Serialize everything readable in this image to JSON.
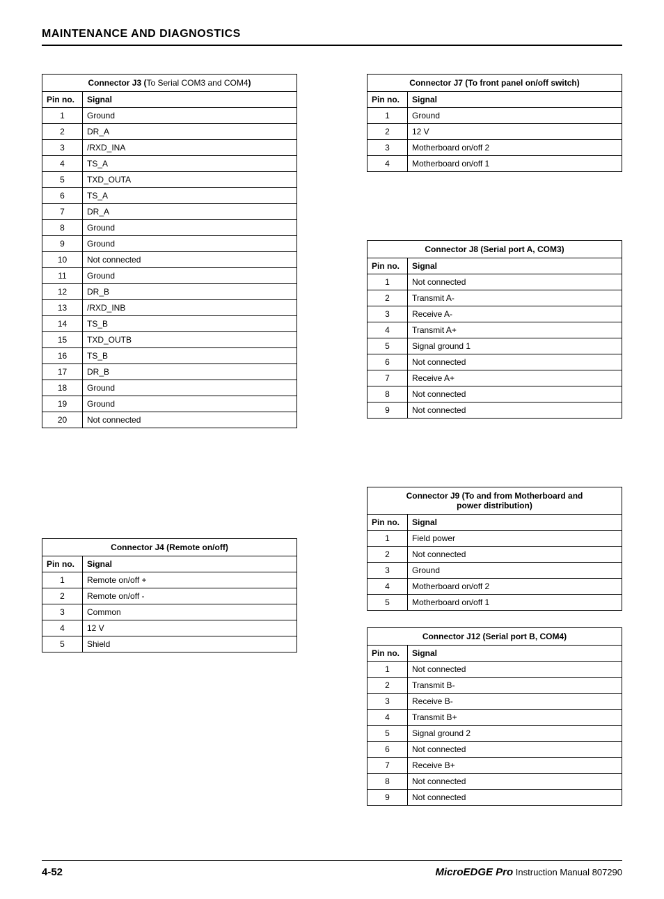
{
  "page": {
    "section_title": "MAINTENANCE AND DIAGNOSTICS",
    "footer_page": "4-52",
    "footer_brand": "MicroEDGE Pro",
    "footer_text": " Instruction Manual   807290"
  },
  "labels": {
    "pin_no": "Pin no.",
    "signal": "Signal"
  },
  "tables": {
    "j3": {
      "title_prefix": "Connector J3 (",
      "title_mid": "To Serial COM3 and COM4",
      "title_suffix": ")",
      "rows": [
        {
          "pin": "1",
          "sig": "Ground"
        },
        {
          "pin": "2",
          "sig": "DR_A"
        },
        {
          "pin": "3",
          "sig": "/RXD_INA"
        },
        {
          "pin": "4",
          "sig": "TS_A"
        },
        {
          "pin": "5",
          "sig": "TXD_OUTA"
        },
        {
          "pin": "6",
          "sig": "TS_A"
        },
        {
          "pin": "7",
          "sig": "DR_A"
        },
        {
          "pin": "8",
          "sig": "Ground"
        },
        {
          "pin": "9",
          "sig": "Ground"
        },
        {
          "pin": "10",
          "sig": "Not connected"
        },
        {
          "pin": "11",
          "sig": "Ground"
        },
        {
          "pin": "12",
          "sig": "DR_B"
        },
        {
          "pin": "13",
          "sig": "/RXD_INB"
        },
        {
          "pin": "14",
          "sig": "TS_B"
        },
        {
          "pin": "15",
          "sig": "TXD_OUTB"
        },
        {
          "pin": "16",
          "sig": "TS_B"
        },
        {
          "pin": "17",
          "sig": "DR_B"
        },
        {
          "pin": "18",
          "sig": "Ground"
        },
        {
          "pin": "19",
          "sig": "Ground"
        },
        {
          "pin": "20",
          "sig": "Not connected"
        }
      ]
    },
    "j4": {
      "title": "Connector J4 (Remote on/off)",
      "rows": [
        {
          "pin": "1",
          "sig": "Remote on/off +"
        },
        {
          "pin": "2",
          "sig": "Remote on/off -"
        },
        {
          "pin": "3",
          "sig": "Common"
        },
        {
          "pin": "4",
          "sig": "12 V"
        },
        {
          "pin": "5",
          "sig": "Shield"
        }
      ]
    },
    "j7": {
      "title": "Connector J7 (To front panel on/off switch)",
      "rows": [
        {
          "pin": "1",
          "sig": "Ground"
        },
        {
          "pin": "2",
          "sig": "12 V"
        },
        {
          "pin": "3",
          "sig": "Motherboard on/off 2"
        },
        {
          "pin": "4",
          "sig": "Motherboard on/off 1"
        }
      ]
    },
    "j8": {
      "title": "Connector J8 (Serial port A, COM3)",
      "rows": [
        {
          "pin": "1",
          "sig": "Not connected"
        },
        {
          "pin": "2",
          "sig": "Transmit A-"
        },
        {
          "pin": "3",
          "sig": "Receive A-"
        },
        {
          "pin": "4",
          "sig": "Transmit A+"
        },
        {
          "pin": "5",
          "sig": "Signal ground 1"
        },
        {
          "pin": "6",
          "sig": "Not connected"
        },
        {
          "pin": "7",
          "sig": "Receive A+"
        },
        {
          "pin": "8",
          "sig": "Not connected"
        },
        {
          "pin": "9",
          "sig": "Not connected"
        }
      ]
    },
    "j9": {
      "title_line1": "Connector J9 (To and from Motherboard and",
      "title_line2": "power distribution)",
      "rows": [
        {
          "pin": "1",
          "sig": "Field power"
        },
        {
          "pin": "2",
          "sig": "Not connected"
        },
        {
          "pin": "3",
          "sig": "Ground"
        },
        {
          "pin": "4",
          "sig": "Motherboard on/off 2"
        },
        {
          "pin": "5",
          "sig": "Motherboard on/off 1"
        }
      ]
    },
    "j12": {
      "title": "Connector J12 (Serial port B, COM4)",
      "rows": [
        {
          "pin": "1",
          "sig": "Not connected"
        },
        {
          "pin": "2",
          "sig": "Transmit B-"
        },
        {
          "pin": "3",
          "sig": "Receive B-"
        },
        {
          "pin": "4",
          "sig": "Transmit B+"
        },
        {
          "pin": "5",
          "sig": "Signal ground 2"
        },
        {
          "pin": "6",
          "sig": "Not connected"
        },
        {
          "pin": "7",
          "sig": "Receive B+"
        },
        {
          "pin": "8",
          "sig": "Not connected"
        },
        {
          "pin": "9",
          "sig": "Not connected"
        }
      ]
    }
  }
}
